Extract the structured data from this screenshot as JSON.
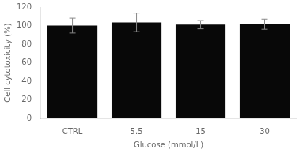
{
  "chart_data": {
    "type": "bar",
    "categories": [
      "CTRL",
      "5.5",
      "15",
      "30"
    ],
    "values": [
      100,
      103.5,
      101,
      101.5
    ],
    "errors": [
      8,
      10,
      4.5,
      5.5
    ],
    "color": "#080808",
    "error_color": "#888888",
    "xlabel": "Glucose (mmol/L)",
    "ylabel": "Cell cytotoxicity (%)",
    "ylim": [
      0,
      120
    ],
    "yticks": [
      0,
      20,
      40,
      60,
      80,
      100,
      120
    ],
    "grid": false
  }
}
